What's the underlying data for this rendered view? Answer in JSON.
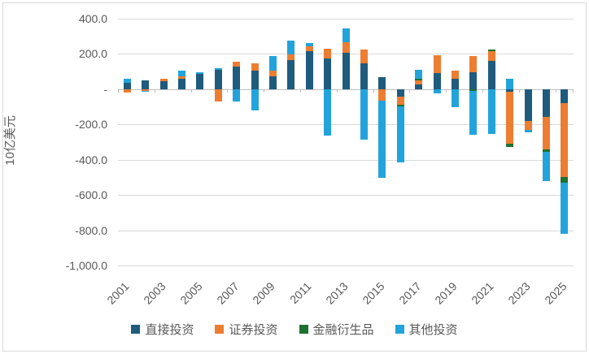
{
  "chart_data": {
    "type": "bar",
    "stacked": true,
    "ylabel": "10亿美元",
    "ylim": [
      -1000,
      400
    ],
    "ytick_values": [
      400,
      200,
      0,
      -200,
      -400,
      -600,
      -800,
      -1000
    ],
    "ytick_labels": [
      "400.0",
      "200.0",
      "-",
      "-200.0",
      "-400.0",
      "-600.0",
      "-800.0",
      "-1,000.0"
    ],
    "categories": [
      "2001",
      "2002",
      "2003",
      "2004",
      "2005",
      "2006",
      "2007",
      "2008",
      "2009",
      "2010",
      "2011",
      "2012",
      "2013",
      "2014",
      "2015",
      "2016",
      "2017",
      "2018",
      "2019",
      "2020",
      "2021",
      "2022",
      "2023",
      "2024",
      "2025"
    ],
    "xtick_labels": [
      "2001",
      "2003",
      "2005",
      "2007",
      "2009",
      "2011",
      "2013",
      "2015",
      "2017",
      "2019",
      "2021",
      "2023",
      "2025"
    ],
    "xtick_every": 2,
    "grid": true,
    "legend_position": "bottom",
    "series": [
      {
        "name": "直接投资",
        "color": "#1F5B7D",
        "values": [
          36,
          48,
          45,
          60,
          88,
          111,
          128,
          103,
          75,
          165,
          215,
          176,
          205,
          146,
          69,
          -41,
          25,
          92,
          58,
          97,
          160,
          -14,
          -180,
          -157,
          -77
        ]
      },
      {
        "name": "证券投资",
        "color": "#ED7D31",
        "values": [
          -19,
          -8,
          12,
          15,
          0,
          -71,
          26,
          46,
          28,
          34,
          28,
          54,
          62,
          77,
          -65,
          -46,
          26,
          103,
          49,
          90,
          54,
          -293,
          -52,
          -185,
          -421
        ]
      },
      {
        "name": "金融衍生品",
        "color": "#1E7130",
        "values": [
          0,
          0,
          0,
          0,
          0,
          0,
          0,
          0,
          0,
          0,
          0,
          0,
          0,
          0,
          0,
          -12,
          7,
          0,
          0,
          -9,
          12,
          -20,
          0,
          -15,
          -31
        ]
      },
      {
        "name": "其他投资",
        "color": "#23A3DB",
        "values": [
          22,
          -8,
          0,
          28,
          8,
          8,
          -68,
          -120,
          85,
          77,
          18,
          -265,
          78,
          -288,
          -438,
          -318,
          52,
          -25,
          -103,
          -250,
          -255,
          58,
          -14,
          -165,
          -292
        ]
      }
    ],
    "colors": {
      "grid": "#D9D9D9",
      "axis": "#BFBFBF",
      "text": "#595959"
    }
  }
}
